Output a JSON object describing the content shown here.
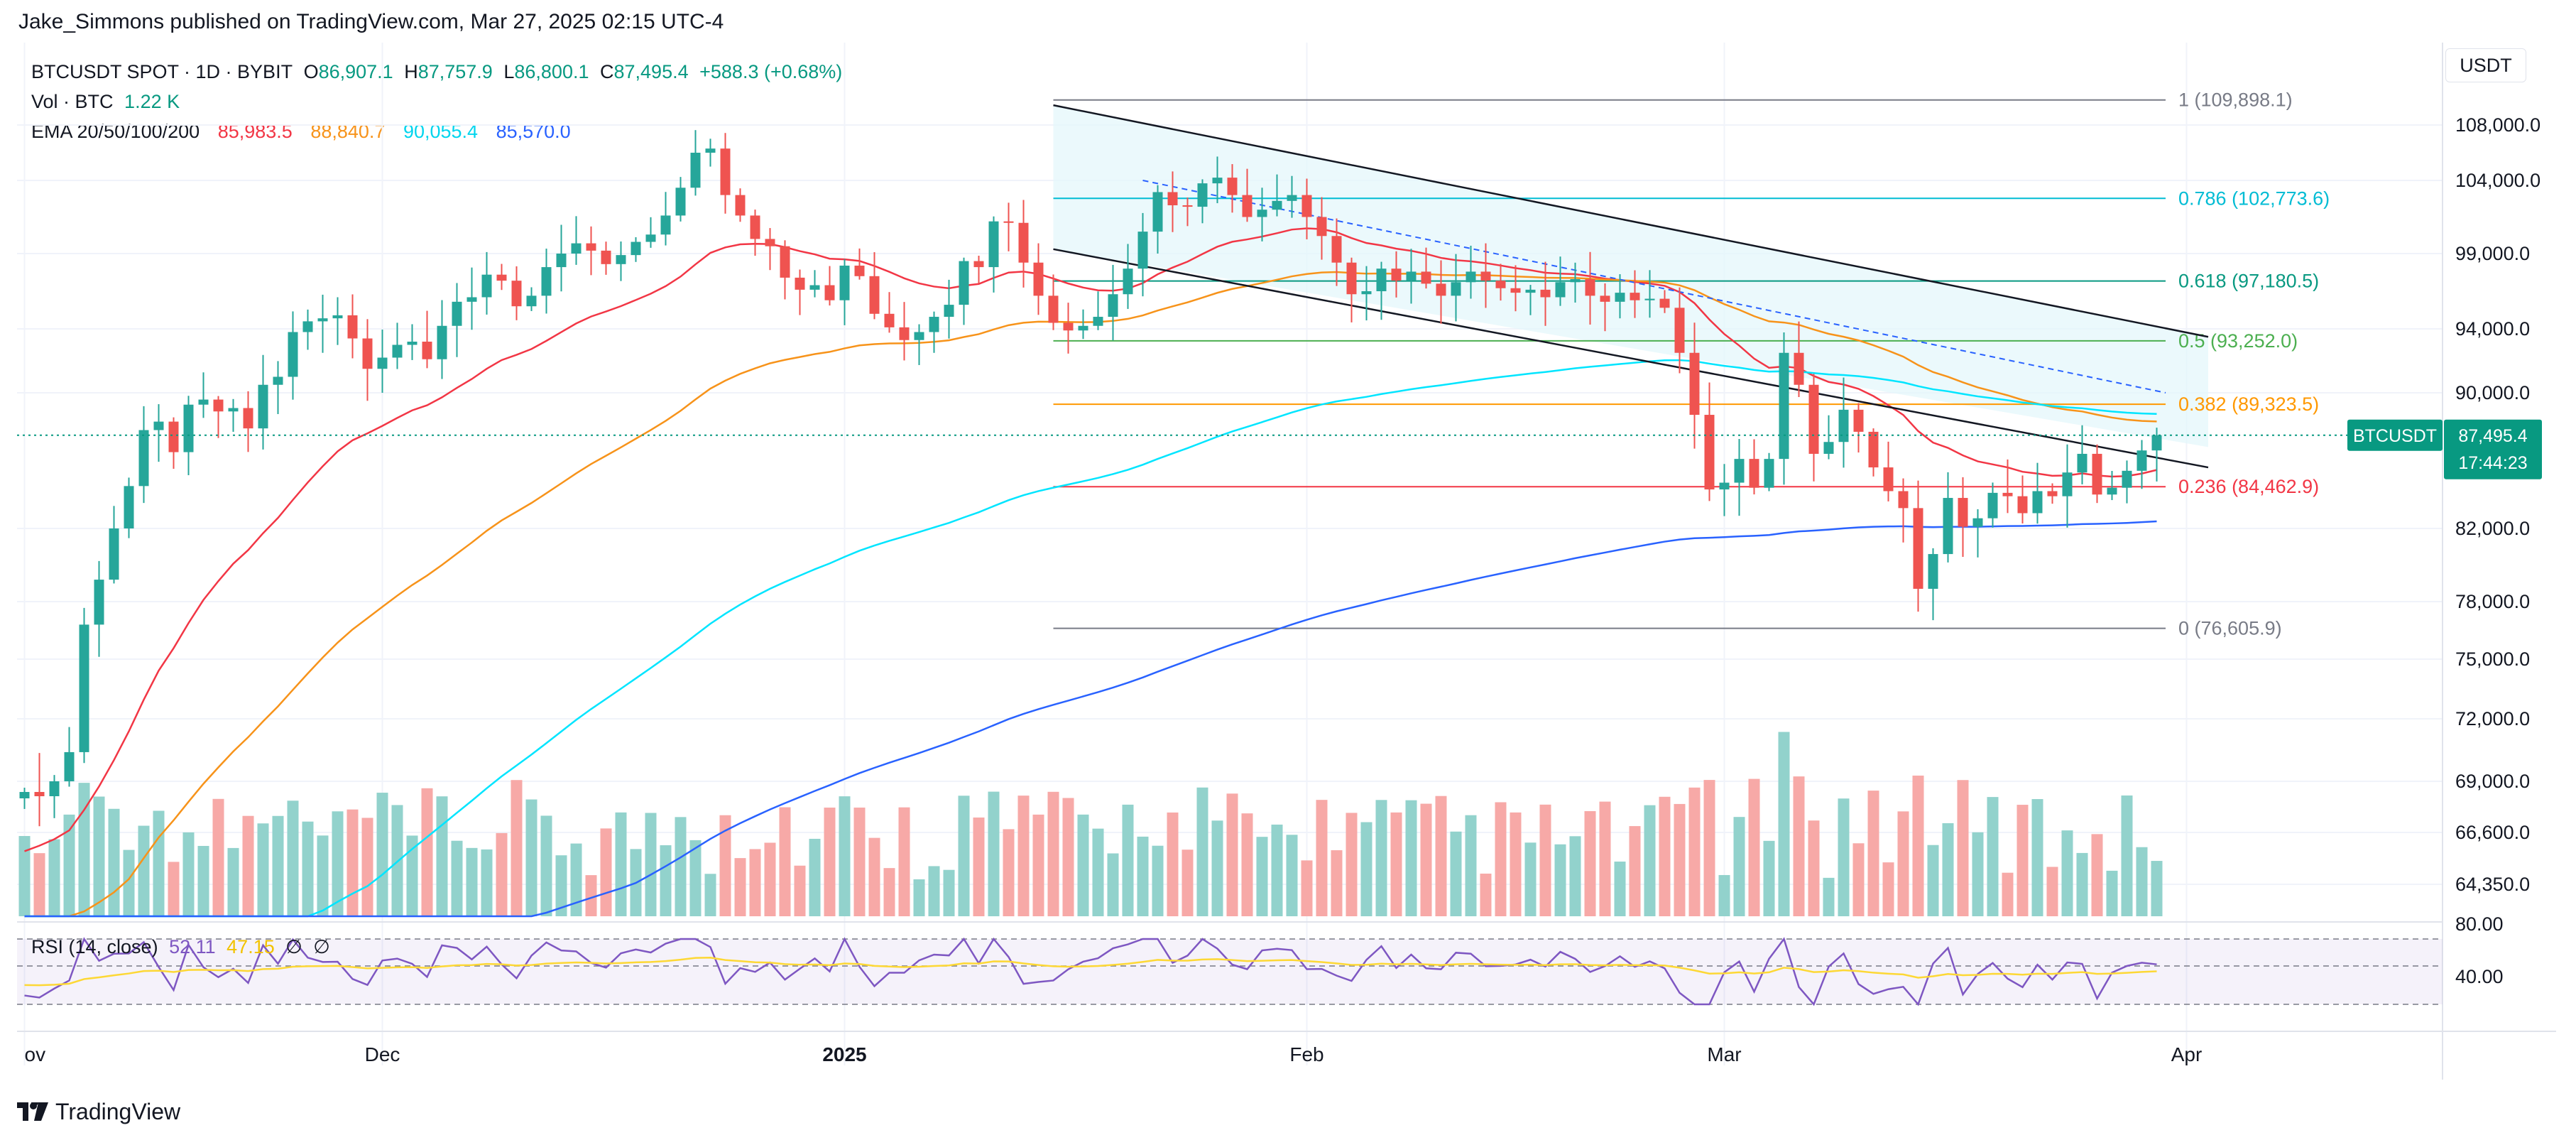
{
  "header": {
    "publisher": "Jake_Simmons published on TradingView.com, Mar 27, 2025 02:15 UTC-4"
  },
  "logo": {
    "text": "TradingView"
  },
  "legend": {
    "symbol": "BTCUSDT SPOT · 1D · BYBIT",
    "o_label": "O",
    "o": "86,907.1",
    "h_label": "H",
    "h": "87,757.9",
    "l_label": "L",
    "l": "86,800.1",
    "c_label": "C",
    "c": "87,495.4",
    "change": "+588.3 (+0.68%)",
    "vol_label": "Vol · BTC",
    "vol": "1.22 K",
    "ema_label": "EMA 20/50/100/200",
    "ema20": "85,983.5",
    "ema50": "88,840.7",
    "ema100": "90,055.4",
    "ema200": "85,570.0",
    "rsi_label": "RSI (14, close)",
    "rsi": "52.11",
    "rsi_ma": "47.15",
    "rsi_na1": "∅",
    "rsi_na2": "∅"
  },
  "unit_button": "USDT",
  "price_tag": {
    "symbol": "BTCUSDT",
    "price": "87,495.4",
    "countdown": "17:44:23"
  },
  "colors": {
    "up": "#26a69a",
    "down": "#ef5350",
    "ema20": "#f23645",
    "ema50": "#f7931a",
    "ema100": "#00e5ff",
    "ema200": "#2962ff",
    "rsi": "#7e57c2",
    "rsi_ma": "#fdd835",
    "last": "#089981"
  },
  "chart_data": {
    "type": "candlestick",
    "title": "BTCUSDT SPOT · 1D · BYBIT",
    "x_ticks": [
      {
        "label": "ov",
        "day": 0
      },
      {
        "label": "Dec",
        "day": 24
      },
      {
        "label": "2025",
        "day": 55
      },
      {
        "label": "Feb",
        "day": 86
      },
      {
        "label": "Mar",
        "day": 114
      },
      {
        "label": "Apr",
        "day": 145
      }
    ],
    "y_ticks": [
      "108,000.0",
      "104,000.0",
      "99,000.0",
      "94,000.0",
      "90,000.0",
      "82,000.0",
      "78,000.0",
      "75,000.0",
      "72,000.0",
      "69,000.0",
      "66,600.0",
      "64,350.0"
    ],
    "y_tick_values": [
      108000,
      104000,
      99000,
      94000,
      90000,
      82000,
      78000,
      75000,
      72000,
      69000,
      66600,
      64350
    ],
    "ylim": [
      62000,
      110800
    ],
    "start_date": "2024-11-08",
    "last_price": 87495.4,
    "closes": [
      68500,
      68300,
      69000,
      70400,
      76800,
      79200,
      82000,
      84500,
      87800,
      88300,
      86500,
      89300,
      89600,
      88900,
      89100,
      87900,
      90500,
      91000,
      93800,
      94500,
      94700,
      94900,
      93400,
      91500,
      92200,
      93000,
      93200,
      92100,
      94200,
      95800,
      96100,
      97600,
      97200,
      95500,
      96200,
      98100,
      99000,
      99700,
      99200,
      98300,
      98900,
      99800,
      100300,
      101600,
      103500,
      106000,
      106300,
      103000,
      101600,
      100000,
      99500,
      97400,
      96600,
      96900,
      95900,
      98200,
      97500,
      95000,
      94100,
      93300,
      93800,
      94800,
      95600,
      98500,
      98100,
      101200,
      101100,
      98400,
      96200,
      94400,
      93900,
      94200,
      94800,
      96300,
      98000,
      100500,
      103200,
      102300,
      102200,
      103800,
      104200,
      103000,
      101500,
      102000,
      102600,
      103000,
      101500,
      100200,
      98400,
      96300,
      96500,
      98000,
      97200,
      97800,
      97000,
      96200,
      97100,
      97800,
      97200,
      96700,
      96400,
      96600,
      96100,
      97100,
      97300,
      96200,
      95800,
      96400,
      95900,
      96000,
      95400,
      92500,
      88700,
      84300,
      84700,
      86100,
      84400,
      86100,
      92500,
      90500,
      86400,
      87100,
      89000,
      87700,
      85600,
      84200,
      83200,
      78700,
      80600,
      83800,
      82100,
      82600,
      84100,
      83900,
      82900,
      84200,
      83900,
      85300,
      86400,
      84000,
      84400,
      85400,
      86600,
      87500
    ]
  },
  "fib": [
    {
      "ratio": "1",
      "label": "1 (109,898.1)",
      "value": 109898.1,
      "color": "#787b86"
    },
    {
      "ratio": "0.786",
      "label": "0.786 (102,773.6)",
      "value": 102773.6,
      "color": "#00bcd4"
    },
    {
      "ratio": "0.618",
      "label": "0.618 (97,180.5)",
      "value": 97180.5,
      "color": "#089981"
    },
    {
      "ratio": "0.5",
      "label": "0.5 (93,252.0)",
      "value": 93252.0,
      "color": "#4caf50"
    },
    {
      "ratio": "0.382",
      "label": "0.382 (89,323.5)",
      "value": 89323.5,
      "color": "#ff9800"
    },
    {
      "ratio": "0.236",
      "label": "0.236 (84,462.9)",
      "value": 84462.9,
      "color": "#f23645"
    },
    {
      "ratio": "0",
      "label": "0 (76,605.9)",
      "value": 76605.9,
      "color": "#787b86"
    }
  ],
  "rsi_panel": {
    "levels": [
      "80.00",
      "40.00"
    ]
  }
}
